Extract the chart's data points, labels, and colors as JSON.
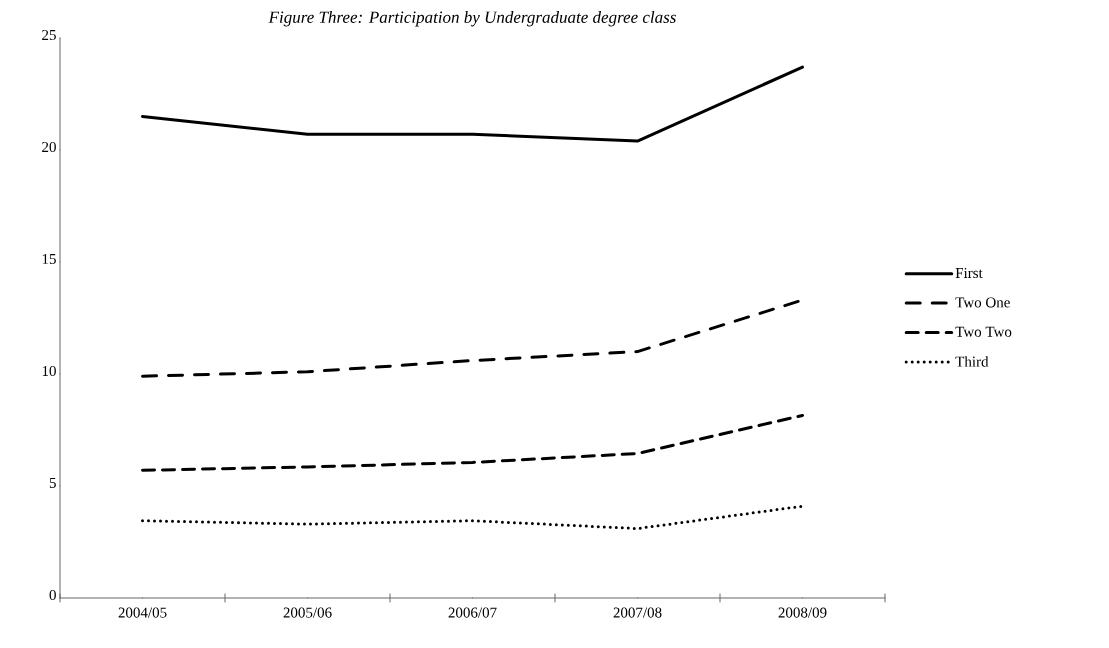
{
  "chart_data": {
    "type": "line",
    "title": "Figure Three: Participation by Undergraduate degree class",
    "categories": [
      "2004/05",
      "2005/06",
      "2006/07",
      "2007/08",
      "2008/09"
    ],
    "series": [
      {
        "name": "First",
        "color": "#000000",
        "line_style": "solid",
        "values": [
          21.5,
          20.7,
          20.7,
          20.4,
          23.7
        ]
      },
      {
        "name": "Two One",
        "color": "#000000",
        "line_style": "dashdot",
        "values": [
          9.9,
          10.1,
          10.6,
          11.0,
          13.3
        ]
      },
      {
        "name": "Two Two",
        "color": "#000000",
        "line_style": "dashed",
        "values": [
          5.7,
          5.85,
          6.05,
          6.45,
          8.15
        ]
      },
      {
        "name": "Third",
        "color": "#000000",
        "line_style": "dotted",
        "values": [
          3.45,
          3.3,
          3.45,
          3.1,
          4.1
        ]
      }
    ],
    "ylim": [
      0,
      25
    ],
    "yticks": [
      0,
      5,
      10,
      15,
      20,
      25
    ],
    "grid": false,
    "legend": "right",
    "marker": "none"
  }
}
